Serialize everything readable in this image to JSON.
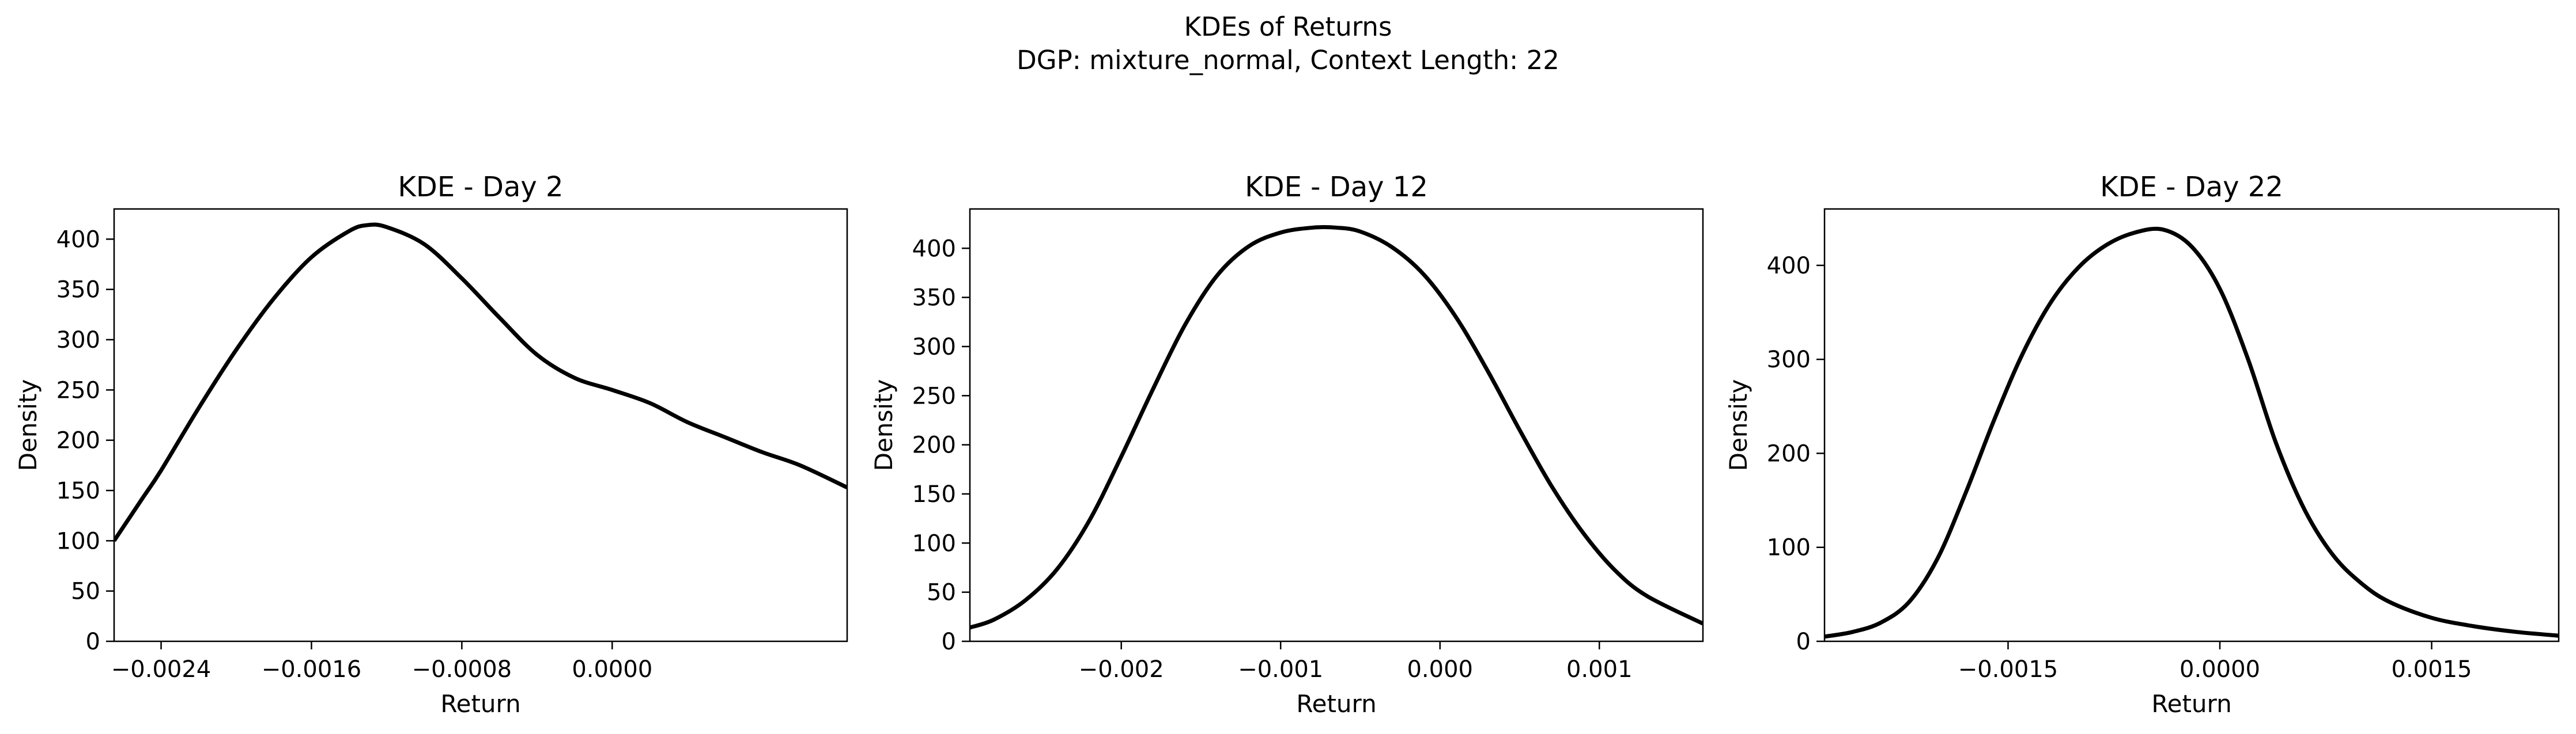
{
  "figure": {
    "title_line1": "KDEs of Returns",
    "title_line2": "DGP: mixture_normal, Context Length: 22"
  },
  "chart_data": [
    {
      "type": "line",
      "title": "KDE - Day 2",
      "xlabel": "Return",
      "ylabel": "Density",
      "xlim": [
        -0.00265,
        0.00125
      ],
      "ylim": [
        0,
        430
      ],
      "xticks": [
        -0.0024,
        -0.0016,
        -0.0008,
        0.0
      ],
      "xtick_labels": [
        "−0.0024",
        "−0.0016",
        "−0.0008",
        "0.0000"
      ],
      "yticks": [
        0,
        50,
        100,
        150,
        200,
        250,
        300,
        350,
        400
      ],
      "ytick_labels": [
        "0",
        "50",
        "100",
        "150",
        "200",
        "250",
        "300",
        "350",
        "400"
      ],
      "grid": false,
      "line_color": "#000000",
      "series": [
        {
          "x": [
            -0.00265,
            -0.0025,
            -0.0024,
            -0.0022,
            -0.002,
            -0.0018,
            -0.0016,
            -0.0014,
            -0.0013,
            -0.0012,
            -0.001,
            -0.0008,
            -0.0006,
            -0.0004,
            -0.0002,
            0.0,
            0.0002,
            0.0004,
            0.0006,
            0.0008,
            0.001,
            0.00125
          ],
          "y": [
            100,
            142,
            170,
            232,
            290,
            341,
            382,
            408,
            414,
            412,
            395,
            361,
            322,
            285,
            262,
            250,
            237,
            218,
            203,
            188,
            175,
            153
          ]
        }
      ]
    },
    {
      "type": "line",
      "title": "KDE - Day 12",
      "xlabel": "Return",
      "ylabel": "Density",
      "xlim": [
        -0.00295,
        0.00165
      ],
      "ylim": [
        0,
        440
      ],
      "xticks": [
        -0.002,
        -0.001,
        0.0,
        0.001
      ],
      "xtick_labels": [
        "−0.002",
        "−0.001",
        "0.000",
        "0.001"
      ],
      "yticks": [
        0,
        50,
        100,
        150,
        200,
        250,
        300,
        350,
        400
      ],
      "ytick_labels": [
        "0",
        "50",
        "100",
        "150",
        "200",
        "250",
        "300",
        "350",
        "400"
      ],
      "grid": false,
      "line_color": "#000000",
      "series": [
        {
          "x": [
            -0.00295,
            -0.0028,
            -0.0026,
            -0.0024,
            -0.0022,
            -0.002,
            -0.0018,
            -0.0016,
            -0.0014,
            -0.0012,
            -0.001,
            -0.0008,
            -0.00065,
            -0.0005,
            -0.0003,
            -0.0001,
            0.0001,
            0.0003,
            0.0005,
            0.0007,
            0.0009,
            0.0011,
            0.0013,
            0.00165
          ],
          "y": [
            14,
            22,
            42,
            74,
            123,
            188,
            257,
            322,
            372,
            402,
            416,
            421,
            421,
            417,
            401,
            373,
            330,
            275,
            215,
            158,
            110,
            72,
            46,
            18
          ]
        }
      ]
    },
    {
      "type": "line",
      "title": "KDE - Day 22",
      "xlabel": "Return",
      "ylabel": "Density",
      "xlim": [
        -0.0028,
        0.0024
      ],
      "ylim": [
        0,
        460
      ],
      "xticks": [
        -0.0015,
        0.0,
        0.0015
      ],
      "xtick_labels": [
        "−0.0015",
        "0.0000",
        "0.0015"
      ],
      "yticks": [
        0,
        100,
        200,
        300,
        400
      ],
      "ytick_labels": [
        "0",
        "100",
        "200",
        "300",
        "400"
      ],
      "grid": false,
      "line_color": "#000000",
      "series": [
        {
          "x": [
            -0.0028,
            -0.0026,
            -0.0024,
            -0.0022,
            -0.002,
            -0.0018,
            -0.0016,
            -0.0014,
            -0.0012,
            -0.001,
            -0.0008,
            -0.0006,
            -0.0004,
            -0.0002,
            0.0,
            0.0002,
            0.0004,
            0.0006,
            0.0008,
            0.001,
            0.0012,
            0.0015,
            0.0018,
            0.0021,
            0.0024
          ],
          "y": [
            5,
            10,
            20,
            42,
            88,
            158,
            235,
            305,
            360,
            398,
            422,
            435,
            438,
            420,
            375,
            300,
            210,
            140,
            92,
            62,
            42,
            25,
            16,
            10,
            6
          ]
        }
      ]
    }
  ]
}
